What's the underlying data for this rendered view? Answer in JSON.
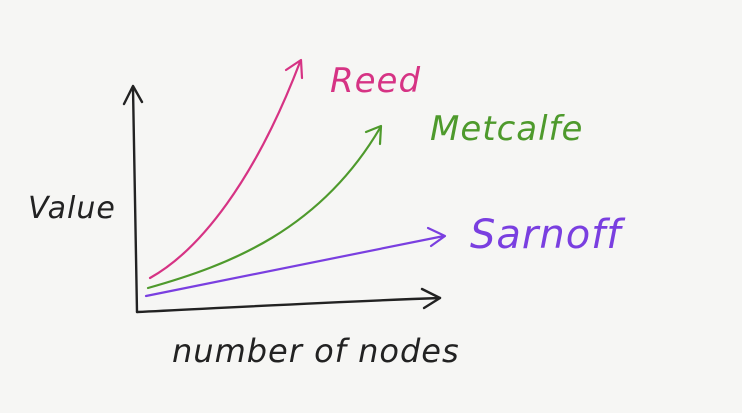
{
  "axes": {
    "y_label": "Value",
    "x_label": "number of nodes"
  },
  "curves": [
    {
      "id": "reed",
      "label": "Reed",
      "color": "#d63384"
    },
    {
      "id": "metcalfe",
      "label": "Metcalfe",
      "color": "#4e9a2c"
    },
    {
      "id": "sarnoff",
      "label": "Sarnoff",
      "color": "#7a3fe0"
    }
  ],
  "colors": {
    "ink": "#222222",
    "background": "#f6f6f4"
  }
}
